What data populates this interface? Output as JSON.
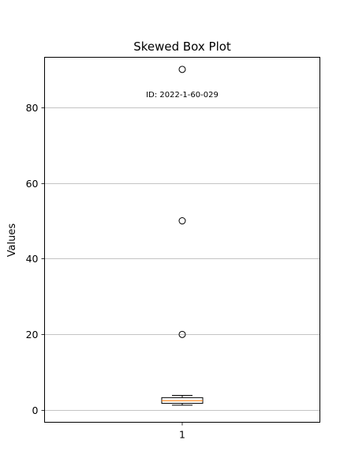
{
  "chart_data": {
    "type": "box",
    "title": "Skewed Box Plot",
    "xlabel": "",
    "ylabel": "Values",
    "categories": [
      "1"
    ],
    "ylim": [
      -3.2,
      93.2
    ],
    "yticks": [
      0,
      20,
      40,
      60,
      80
    ],
    "grid": "horizontal",
    "boxes": [
      {
        "category": "1",
        "whisker_low": 1.3,
        "q1": 1.8,
        "median": 2.5,
        "q3": 3.3,
        "whisker_high": 3.9,
        "outliers": [
          20,
          50,
          90
        ]
      }
    ],
    "annotation": "ID: 2022-1-60-029",
    "colors": {
      "median": "#ff7f0e",
      "box_edge": "#000000",
      "grid": "#b0b0b0",
      "annotation": "#808080"
    }
  }
}
